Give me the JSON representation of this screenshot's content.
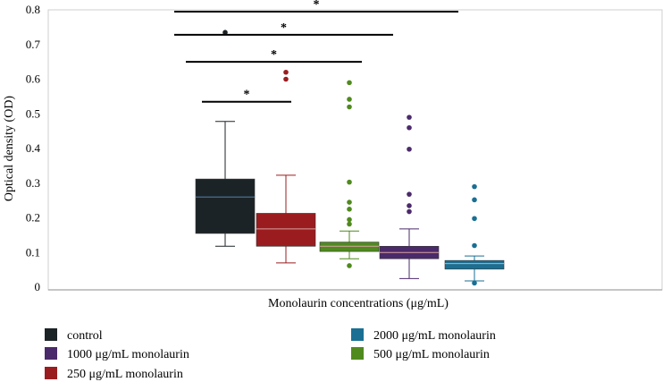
{
  "chart_data": {
    "type": "box",
    "xlabel": "Monolaurin concentrations (μg/mL)",
    "ylabel": "Optical density (OD)",
    "ylim": [
      0,
      0.8
    ],
    "yticks": [
      "0",
      "0.1",
      "0.2",
      "0.3",
      "0.4",
      "0.5",
      "0.6",
      "0.7",
      "0.8"
    ],
    "ytick_values": [
      0,
      0.1,
      0.2,
      0.3,
      0.4,
      0.5,
      0.6,
      0.7,
      0.8
    ],
    "grid": false,
    "legend_position": "bottom",
    "series": [
      {
        "name": "control",
        "color": "#1c2327",
        "min": 0.118,
        "q1": 0.155,
        "median": 0.26,
        "q3": 0.312,
        "max": 0.478,
        "outliers": [
          0.735
        ]
      },
      {
        "name": "250 μg/mL monolaurin",
        "color": "#9b1c1f",
        "min": 0.07,
        "q1": 0.118,
        "median": 0.168,
        "q3": 0.213,
        "max": 0.323,
        "outliers": [
          0.6,
          0.62
        ]
      },
      {
        "name": "500 μg/mL monolaurin",
        "color": "#4f8a1e",
        "min": 0.082,
        "q1": 0.103,
        "median": 0.118,
        "q3": 0.13,
        "max": 0.162,
        "outliers": [
          0.062,
          0.182,
          0.195,
          0.225,
          0.245,
          0.303,
          0.52,
          0.542,
          0.59
        ]
      },
      {
        "name": "1000 μg/mL monolaurin",
        "color": "#4b2a6b",
        "min": 0.025,
        "q1": 0.082,
        "median": 0.1,
        "q3": 0.118,
        "max": 0.168,
        "outliers": [
          0.218,
          0.235,
          0.268,
          0.398,
          0.46,
          0.49
        ]
      },
      {
        "name": "2000 μg/mL monolaurin",
        "color": "#1a6f93",
        "min": 0.018,
        "q1": 0.052,
        "median": 0.068,
        "q3": 0.077,
        "max": 0.09,
        "outliers": [
          0.012,
          0.12,
          0.198,
          0.252,
          0.29
        ]
      }
    ],
    "significance": [
      {
        "label": "*",
        "from": "control",
        "to": "250 μg/mL monolaurin",
        "level": 0.535
      },
      {
        "label": "*",
        "from": "control",
        "to": "500 μg/mL monolaurin",
        "level": 0.65
      },
      {
        "label": "*",
        "from": "control",
        "to": "1000 μg/mL monolaurin",
        "level": 0.728
      },
      {
        "label": "*",
        "from": "control",
        "to": "2000 μg/mL monolaurin",
        "level": 0.795
      }
    ],
    "legend": [
      {
        "label": "control",
        "color": "#1c2327"
      },
      {
        "label": "1000 μg/mL monolaurin",
        "color": "#4b2a6b"
      },
      {
        "label": "250 μg/mL monolaurin",
        "color": "#9b1c1f"
      },
      {
        "label": "2000 μg/mL monolaurin",
        "color": "#1a6f93"
      },
      {
        "label": "500 μg/mL monolaurin",
        "color": "#4f8a1e"
      }
    ]
  }
}
